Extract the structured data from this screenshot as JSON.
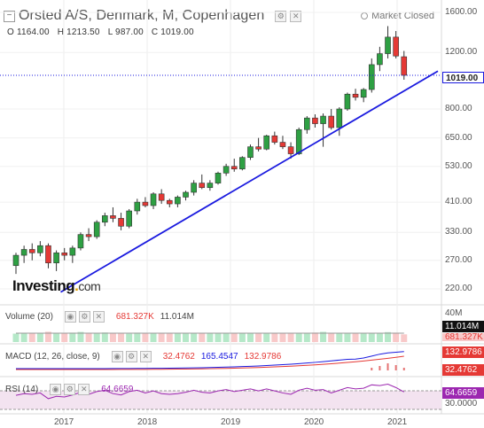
{
  "header": {
    "collapse_icon": "−",
    "title": "Orsted A/S, Denmark, M, Copenhagen",
    "market_status": "Market Closed"
  },
  "ohlc": {
    "open": "O 1164.00",
    "high": "H 1213.50",
    "low": "L 987.00",
    "close": "C 1019.00"
  },
  "price_axis": {
    "ticks": [
      "1600.00",
      "1200.00",
      "800.00",
      "650.00",
      "530.00",
      "410.00",
      "330.00",
      "270.00",
      "220.00"
    ],
    "last_price": "1019.00"
  },
  "volume": {
    "label": "Volume (20)",
    "val1": "681.327K",
    "val2": "11.014M",
    "axis_top": "40M",
    "tag1": "11.014M",
    "tag2": "681.327K"
  },
  "macd": {
    "label": "MACD (12, 26, close, 9)",
    "val1": "32.4762",
    "val2": "165.4547",
    "val3": "132.9786",
    "tag1": "132.9786",
    "tag2": "32.4762"
  },
  "rsi": {
    "label": "RSI (14)",
    "value": "64.6659",
    "tag": "64.6659",
    "axis_low": "30.0000"
  },
  "x_axis": [
    "2017",
    "2018",
    "2019",
    "2020",
    "2021"
  ],
  "logo": {
    "brand": "Investing",
    "dot": ".",
    "suffix": "com"
  },
  "colors": {
    "up": "#2ea043",
    "down": "#e53935",
    "trend": "#1a1adf",
    "rsi_band": "#f3e3f0",
    "rsi_line": "#9c27b0"
  },
  "chart_data": {
    "type": "candlestick",
    "series": [
      {
        "name": "price",
        "ohlc": [
          [
            260,
            285,
            245,
            280
          ],
          [
            280,
            300,
            265,
            292
          ],
          [
            292,
            305,
            270,
            285
          ],
          [
            285,
            310,
            278,
            300
          ],
          [
            300,
            305,
            255,
            265
          ],
          [
            265,
            290,
            250,
            285
          ],
          [
            285,
            295,
            270,
            280
          ],
          [
            280,
            300,
            265,
            295
          ],
          [
            295,
            330,
            290,
            325
          ],
          [
            325,
            340,
            310,
            320
          ],
          [
            320,
            360,
            315,
            355
          ],
          [
            355,
            380,
            345,
            372
          ],
          [
            372,
            395,
            355,
            365
          ],
          [
            365,
            380,
            335,
            345
          ],
          [
            345,
            390,
            340,
            385
          ],
          [
            385,
            420,
            375,
            410
          ],
          [
            410,
            425,
            395,
            400
          ],
          [
            400,
            440,
            390,
            435
          ],
          [
            435,
            450,
            405,
            415
          ],
          [
            415,
            420,
            395,
            405
          ],
          [
            405,
            430,
            395,
            425
          ],
          [
            425,
            445,
            415,
            440
          ],
          [
            440,
            480,
            430,
            470
          ],
          [
            470,
            500,
            450,
            455
          ],
          [
            455,
            480,
            445,
            470
          ],
          [
            470,
            510,
            465,
            505
          ],
          [
            505,
            540,
            495,
            530
          ],
          [
            530,
            560,
            510,
            520
          ],
          [
            520,
            570,
            515,
            565
          ],
          [
            565,
            620,
            555,
            610
          ],
          [
            610,
            650,
            590,
            600
          ],
          [
            600,
            665,
            595,
            660
          ],
          [
            660,
            680,
            620,
            630
          ],
          [
            630,
            660,
            600,
            610
          ],
          [
            610,
            630,
            560,
            580
          ],
          [
            580,
            700,
            575,
            690
          ],
          [
            690,
            760,
            670,
            750
          ],
          [
            750,
            770,
            700,
            720
          ],
          [
            720,
            775,
            610,
            760
          ],
          [
            760,
            800,
            690,
            700
          ],
          [
            700,
            810,
            660,
            800
          ],
          [
            800,
            900,
            790,
            890
          ],
          [
            890,
            925,
            850,
            870
          ],
          [
            870,
            930,
            840,
            920
          ],
          [
            920,
            1150,
            900,
            1100
          ],
          [
            1100,
            1250,
            1050,
            1190
          ],
          [
            1190,
            1450,
            1150,
            1340
          ],
          [
            1340,
            1400,
            1150,
            1170
          ],
          [
            1164,
            1213.5,
            987,
            1019
          ]
        ]
      }
    ],
    "volume_m": [
      1.5,
      2.1,
      1.8,
      1.6,
      3.6,
      2.2,
      1.7,
      2.6,
      3.4,
      1.9,
      2.4,
      2.8,
      1.9,
      2.2,
      1.4,
      2.6,
      1.8,
      2.1,
      1.9,
      1.7,
      1.6,
      2.0,
      1.8,
      1.5,
      1.9,
      1.6,
      1.7,
      1.8,
      1.6,
      1.9,
      1.7,
      1.8,
      2.0,
      1.9,
      1.6,
      2.2,
      2.4,
      2.7,
      3.5,
      2.1,
      1.9,
      2.3,
      2.0,
      1.8,
      2.5,
      2.2,
      3.2,
      2.6,
      0.68
    ],
    "trend_line": {
      "from": [
        4,
        215
      ],
      "to": [
        49,
        1050
      ]
    },
    "x_ticks": [
      "2017",
      "2018",
      "2019",
      "2020",
      "2021"
    ],
    "y_ticks": [
      220,
      270,
      330,
      410,
      530,
      650,
      800,
      1200,
      1600
    ]
  }
}
